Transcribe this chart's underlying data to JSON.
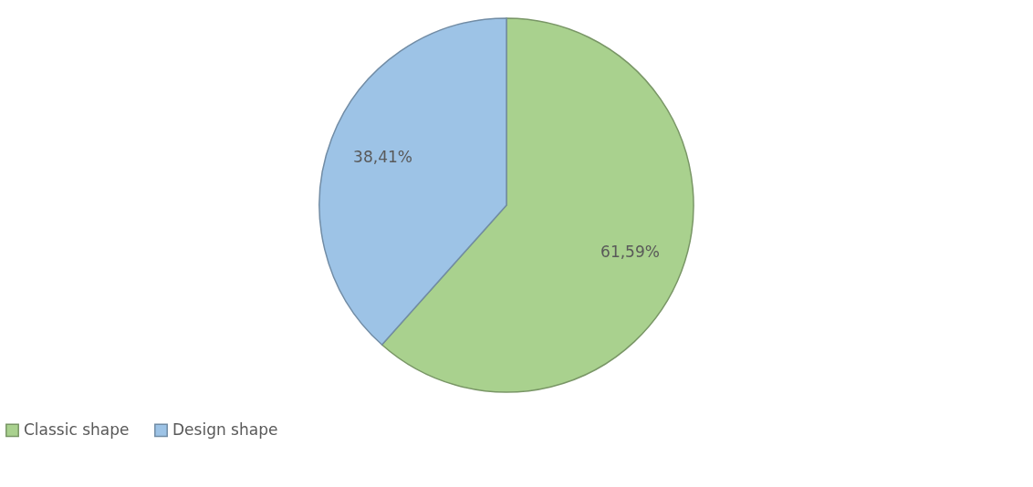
{
  "chart_data": {
    "type": "pie",
    "categories": [
      "Classic shape",
      "Design shape"
    ],
    "values": [
      61.59,
      38.41
    ],
    "value_labels": [
      "61,59%",
      "38,41%"
    ],
    "colors": [
      "#a9d18e",
      "#9dc3e6"
    ],
    "legend": "bottom"
  }
}
